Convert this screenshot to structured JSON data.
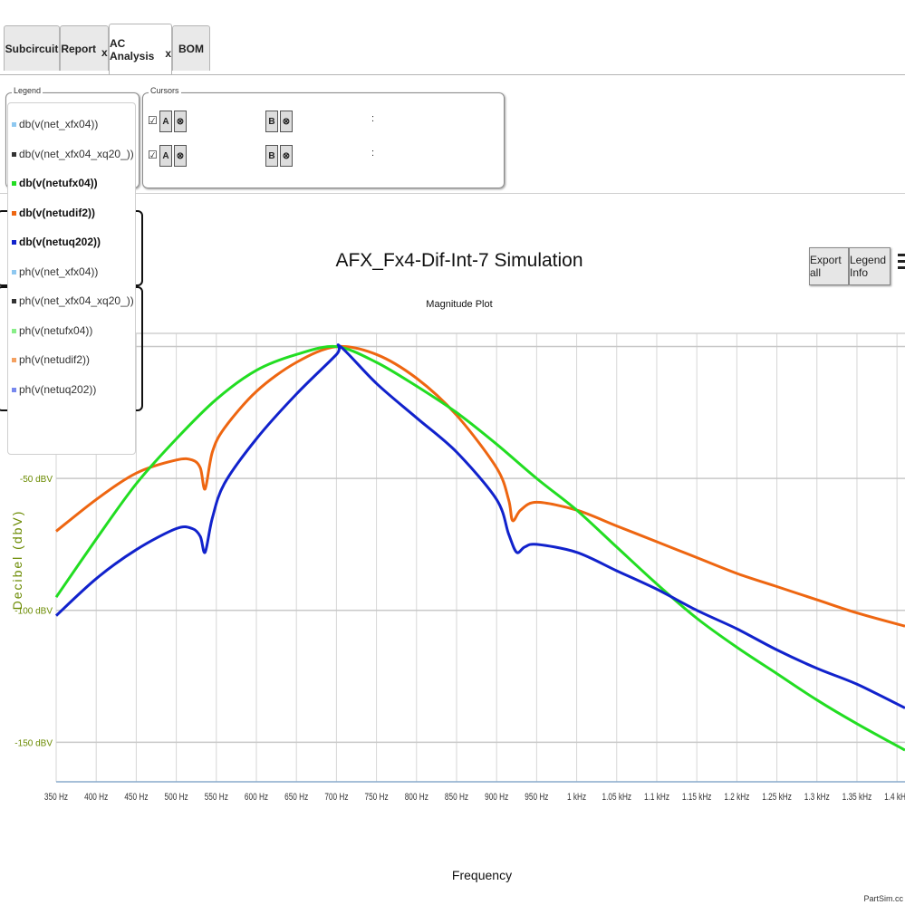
{
  "tabs": [
    {
      "label": "Subcircuit",
      "closable": false,
      "active": false
    },
    {
      "label": "Report",
      "closable": true,
      "active": false
    },
    {
      "label": "AC Analysis",
      "closable": true,
      "active": true
    },
    {
      "label": "BOM",
      "closable": false,
      "active": false
    }
  ],
  "close_glyph": "x",
  "legend_panel": {
    "title": "Legend",
    "items": [
      {
        "label": "db(v(net_xfx04))",
        "color": "#8ec8f0",
        "bold": false
      },
      {
        "label": "db(v(net_xfx04_xq20_))",
        "color": "#333333",
        "bold": false
      },
      {
        "label": "db(v(netufx04))",
        "color": "#22dd22",
        "bold": true
      },
      {
        "label": "db(v(netudif2))",
        "color": "#ee6611",
        "bold": true
      },
      {
        "label": "db(v(netuq202))",
        "color": "#1122cc",
        "bold": true
      },
      {
        "label": "ph(v(net_xfx04))",
        "color": "#8ec8f0",
        "bold": false
      },
      {
        "label": "ph(v(net_xfx04_xq20_))",
        "color": "#333333",
        "bold": false
      },
      {
        "label": "ph(v(netufx04))",
        "color": "#88ee88",
        "bold": false
      },
      {
        "label": "ph(v(netudif2))",
        "color": "#f4a060",
        "bold": false
      },
      {
        "label": "ph(v(netuq202))",
        "color": "#7788ee",
        "bold": false
      }
    ]
  },
  "cursors_panel": {
    "title": "Cursors",
    "rows": [
      {
        "check": "☑",
        "a_label": "A",
        "b_label": "B",
        "clear_glyph": "⊗",
        "sep": ":"
      },
      {
        "check": "☑",
        "a_label": "A",
        "b_label": "B",
        "clear_glyph": "⊗",
        "sep": ":"
      }
    ]
  },
  "buttons": {
    "export_all": "Export all",
    "legend_info": "Legend Info"
  },
  "footer": "PartSim.cc",
  "chart_data": {
    "type": "line",
    "title": "AFX_Fx4-Dif-Int-7 Simulation",
    "subtitle": "Magnitude Plot",
    "xlabel": "Frequency",
    "ylabel": "Decibel (dbV)",
    "xlim": [
      350,
      1410
    ],
    "ylim": [
      -165,
      5
    ],
    "grid": true,
    "x_ticks": [
      {
        "value": 350,
        "label": "350 Hz"
      },
      {
        "value": 400,
        "label": "400 Hz"
      },
      {
        "value": 450,
        "label": "450 Hz"
      },
      {
        "value": 500,
        "label": "500 Hz"
      },
      {
        "value": 550,
        "label": "550 Hz"
      },
      {
        "value": 600,
        "label": "600 Hz"
      },
      {
        "value": 650,
        "label": "650 Hz"
      },
      {
        "value": 700,
        "label": "700 Hz"
      },
      {
        "value": 750,
        "label": "750 Hz"
      },
      {
        "value": 800,
        "label": "800 Hz"
      },
      {
        "value": 850,
        "label": "850 Hz"
      },
      {
        "value": 900,
        "label": "900 Hz"
      },
      {
        "value": 950,
        "label": "950 Hz"
      },
      {
        "value": 1000,
        "label": "1 kHz"
      },
      {
        "value": 1050,
        "label": "1.05 kHz"
      },
      {
        "value": 1100,
        "label": "1.1 kHz"
      },
      {
        "value": 1150,
        "label": "1.15 kHz"
      },
      {
        "value": 1200,
        "label": "1.2 kHz"
      },
      {
        "value": 1250,
        "label": "1.25 kHz"
      },
      {
        "value": 1300,
        "label": "1.3 kHz"
      },
      {
        "value": 1350,
        "label": "1.35 kHz"
      },
      {
        "value": 1400,
        "label": "1.4 kHz"
      }
    ],
    "y_ticks": [
      {
        "value": 50,
        "label": ""
      },
      {
        "value": 0,
        "label": ""
      },
      {
        "value": -50,
        "label": "-50 dBV"
      },
      {
        "value": -100,
        "label": "-100 dBV"
      },
      {
        "value": -150,
        "label": "-150 dBV"
      }
    ],
    "series": [
      {
        "color": "#ee6611",
        "x": [
          350,
          400,
          450,
          500,
          520,
          530,
          536,
          545,
          560,
          600,
          650,
          700,
          750,
          800,
          850,
          900,
          915,
          920,
          930,
          950,
          1000,
          1050,
          1100,
          1150,
          1200,
          1250,
          1300,
          1350,
          1410
        ],
        "y": [
          -70,
          -58,
          -48,
          -43,
          -43,
          -46,
          -54,
          -40,
          -31,
          -17,
          -6,
          0,
          -3,
          -12,
          -26,
          -46,
          -58,
          -66,
          -62,
          -59,
          -62,
          -68,
          -74,
          -80,
          -86,
          -91,
          -96,
          -101,
          -106
        ]
      },
      {
        "color": "#22dd22",
        "x": [
          350,
          400,
          450,
          500,
          550,
          600,
          650,
          700,
          750,
          800,
          850,
          900,
          950,
          1000,
          1050,
          1100,
          1150,
          1200,
          1250,
          1300,
          1350,
          1410
        ],
        "y": [
          -95,
          -73,
          -52,
          -35,
          -20,
          -9,
          -3,
          0,
          -6,
          -15,
          -25,
          -37,
          -50,
          -62,
          -76,
          -90,
          -103,
          -114,
          -124,
          -134,
          -143,
          -153
        ]
      },
      {
        "color": "#1122cc",
        "x": [
          350,
          400,
          450,
          500,
          520,
          530,
          536,
          545,
          560,
          600,
          650,
          700,
          705,
          750,
          800,
          850,
          900,
          915,
          925,
          935,
          950,
          1000,
          1050,
          1100,
          1150,
          1200,
          1250,
          1300,
          1350,
          1410
        ],
        "y": [
          -102,
          -88,
          -77,
          -69,
          -69,
          -72,
          -78,
          -65,
          -52,
          -35,
          -18,
          -3,
          0,
          -14,
          -27,
          -40,
          -58,
          -71,
          -78,
          -76,
          -75,
          -78,
          -85,
          -92,
          -100,
          -107,
          -115,
          -122,
          -128,
          -137
        ]
      }
    ]
  }
}
